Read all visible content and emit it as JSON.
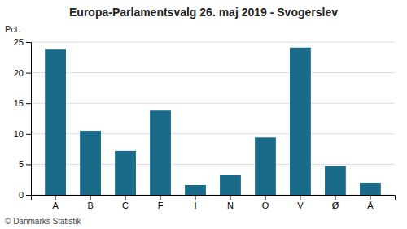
{
  "chart_data": {
    "type": "bar",
    "title": "Europa-Parlamentsvalg 26. maj 2019 - Svogerslev",
    "ylabel": "Pct.",
    "annotations": [
      "© Danmarks Statistik"
    ],
    "categories": [
      "A",
      "B",
      "C",
      "F",
      "I",
      "N",
      "O",
      "V",
      "Ø",
      "Å"
    ],
    "values": [
      23.9,
      10.5,
      7.2,
      13.8,
      1.6,
      3.2,
      9.4,
      24.1,
      4.7,
      2.0
    ],
    "color": "#1a6b8a",
    "ylim": [
      0,
      25
    ],
    "yticks": [
      0,
      5,
      10,
      15,
      20,
      25
    ],
    "grid": true
  }
}
